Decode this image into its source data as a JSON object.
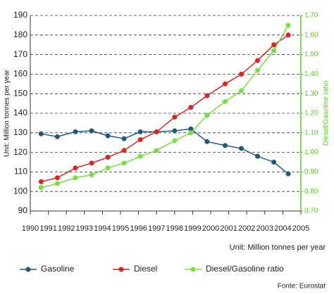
{
  "chart_data": {
    "type": "line",
    "y_label": "Unit: Million tonnes per year",
    "y2_label": "Diesel/Gasoline ratio",
    "x_label": "Unit: Million tonnes per year",
    "source": "Fonte: Eurostat",
    "x": [
      1990.6,
      1991.5,
      1992.5,
      1993.4,
      1994.3,
      1995.2,
      1996.1,
      1997.0,
      1998.0,
      1998.9,
      1999.8,
      2000.8,
      2001.7,
      2002.6,
      2003.5,
      2004.3
    ],
    "xlim": [
      1990,
      2005
    ],
    "xticks": [
      1990,
      1991,
      1992,
      1993,
      1994,
      1995,
      1996,
      1997,
      1998,
      1999,
      2000,
      2001,
      2002,
      2003,
      2004,
      2005
    ],
    "ylim": [
      90,
      190
    ],
    "yticks": [
      90,
      100,
      110,
      120,
      130,
      140,
      150,
      160,
      170,
      180,
      190
    ],
    "y2lim": [
      0.7,
      1.7
    ],
    "y2ticks": [
      {
        "value": 0.7,
        "label": "0,70"
      },
      {
        "value": 0.8,
        "label": "0,80"
      },
      {
        "value": 0.9,
        "label": "0,90"
      },
      {
        "value": 1.0,
        "label": "1,00"
      },
      {
        "value": 1.1,
        "label": "1,10"
      },
      {
        "value": 1.2,
        "label": "1,20"
      },
      {
        "value": 1.3,
        "label": "1,30"
      },
      {
        "value": 1.4,
        "label": "1,40"
      },
      {
        "value": 1.5,
        "label": "1,50"
      },
      {
        "value": 1.6,
        "label": "1,60"
      },
      {
        "value": 1.7,
        "label": "1,70"
      }
    ],
    "grid": true,
    "series": [
      {
        "name": "Gasoline",
        "color": "#1f5a78",
        "values": [
          129.5,
          128,
          130.5,
          131,
          128.5,
          127,
          130.5,
          130.5,
          131,
          132,
          125.5,
          123.5,
          122,
          118,
          115,
          109
        ]
      },
      {
        "name": "Diesel",
        "color": "#e02222",
        "values": [
          105,
          107,
          112,
          114.5,
          117.5,
          121,
          126.5,
          130.5,
          138,
          143,
          149,
          155,
          160,
          167,
          175,
          180
        ]
      },
      {
        "name": "Diesel/Gasoline ratio",
        "color": "#77e040",
        "axis": "y2",
        "values": [
          0.82,
          0.84,
          0.87,
          0.885,
          0.92,
          0.945,
          0.98,
          1.01,
          1.06,
          1.1,
          1.19,
          1.26,
          1.315,
          1.42,
          1.52,
          1.65
        ]
      }
    ]
  }
}
